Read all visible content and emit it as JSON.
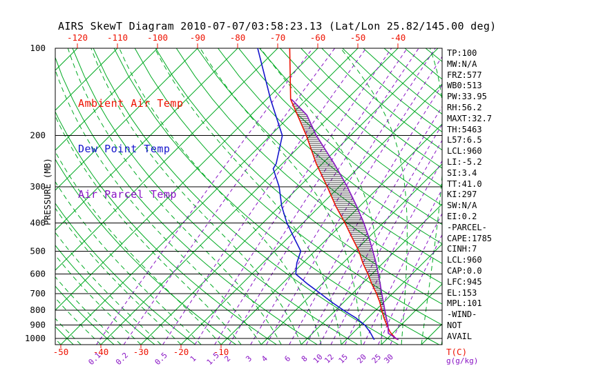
{
  "title": "AIRS SkewT Diagram 2010-07-07/03:58:23.13 (Lat/Lon 25.82/145.00 deg)",
  "legend": {
    "ambient": {
      "label": "Ambient Air Temp",
      "color": "#ee1100"
    },
    "dewpoint": {
      "label": "Dew Point Temp",
      "color": "#1414cc"
    },
    "parcel": {
      "label": "Air Parcel Temp",
      "color": "#8812c4"
    }
  },
  "axes": {
    "y_label": "PRESSURE (MB)",
    "x_label": "T(C)",
    "mix_label": "g(g/kg)",
    "pressure_ticks": [
      100,
      200,
      300,
      400,
      500,
      600,
      700,
      800,
      900,
      1000
    ],
    "top_temp_ticks": [
      -120,
      -110,
      -100,
      -90,
      -80,
      -70,
      -60,
      -50,
      -40
    ],
    "bottom_temp_ticks": [
      -50,
      -40,
      -30,
      -20,
      -10
    ],
    "mixing_ratio_ticks": [
      0.1,
      0.2,
      0.5,
      1,
      1.5,
      2,
      3,
      4,
      6,
      8,
      10,
      12,
      15,
      20,
      25,
      30
    ]
  },
  "stats": [
    "TP:100",
    "MW:N/A",
    "FRZ:577",
    "WB0:513",
    "PW:33.95",
    "RH:56.2",
    "MAXT:32.7",
    "TH:5463",
    "L57:6.5",
    "LCL:960",
    "LI:-5.2",
    "SI:3.4",
    "TT:41.0",
    "KI:297",
    "SW:N/A",
    "EI:0.2",
    "-PARCEL-",
    "CAPE:1785",
    "CINH:7",
    "LCL:960",
    "CAP:0.0",
    "LFC:945",
    "EL:153",
    "MPL:101",
    "-WIND-",
    "NOT",
    "AVAIL"
  ],
  "chart_data": {
    "type": "line",
    "subtype": "skewt-log-p",
    "title": "AIRS SkewT Diagram 2010-07-07/03:58:23.13 (Lat/Lon 25.82/145.00 deg)",
    "y_axis": {
      "label": "PRESSURE (MB)",
      "scale": "log",
      "range_mb": [
        100,
        1050
      ],
      "ticks": [
        100,
        200,
        300,
        400,
        500,
        600,
        700,
        800,
        900,
        1000
      ]
    },
    "x_axis": {
      "label": "T(C)",
      "surface_range_c": [
        -50,
        45
      ],
      "top_ticks_c": [
        -120,
        -110,
        -100,
        -90,
        -80,
        -70,
        -60,
        -50,
        -40
      ],
      "bottom_ticks_c": [
        -50,
        -40,
        -30,
        -20,
        -10
      ]
    },
    "colors": {
      "temp_red": "#ee1100",
      "dewpoint_blue": "#1414cc",
      "parcel_violet": "#8812c4",
      "grid_green": "#00aa22",
      "grid_violet": "#8812c4",
      "axis_black": "#000000",
      "hatch_black": "#000000"
    },
    "grid": {
      "isotherms_c": [
        -130,
        -120,
        -110,
        -100,
        -90,
        -80,
        -70,
        -60,
        -50,
        -40,
        -30,
        -20,
        -10,
        0,
        10,
        20,
        30,
        40
      ],
      "dry_adiabats_c": [
        -50,
        -40,
        -30,
        -20,
        -10,
        0,
        10,
        20,
        30,
        40,
        50,
        60,
        70,
        80,
        90,
        100,
        110,
        120,
        130,
        140,
        150,
        160,
        170,
        180,
        190,
        200
      ],
      "moist_adiabats_c": [
        -60,
        -55,
        -50,
        -45,
        -40,
        -35,
        -30,
        -25,
        -20,
        -15,
        -10,
        -5,
        0,
        5,
        10,
        15,
        20,
        25,
        30,
        35,
        40,
        45,
        50
      ],
      "mixing_ratio_g_kg": [
        0.1,
        0.2,
        0.5,
        1,
        1.5,
        2,
        3,
        4,
        6,
        8,
        10,
        12,
        15,
        20,
        25,
        30
      ]
    },
    "series": [
      {
        "name": "Ambient Air Temp",
        "color": "#ee1100",
        "units": [
          "mb",
          "C"
        ],
        "points": [
          [
            1010,
            33
          ],
          [
            1000,
            32
          ],
          [
            950,
            29
          ],
          [
            900,
            26.5
          ],
          [
            850,
            24
          ],
          [
            800,
            21.5
          ],
          [
            750,
            19
          ],
          [
            700,
            16
          ],
          [
            650,
            12.5
          ],
          [
            600,
            9
          ],
          [
            550,
            5
          ],
          [
            500,
            1
          ],
          [
            450,
            -4
          ],
          [
            400,
            -9.5
          ],
          [
            350,
            -16
          ],
          [
            300,
            -23
          ],
          [
            250,
            -31.5
          ],
          [
            200,
            -41
          ],
          [
            150,
            -54
          ],
          [
            100,
            -67
          ]
        ]
      },
      {
        "name": "Dew Point Temp",
        "color": "#1414cc",
        "units": [
          "mb",
          "C"
        ],
        "points": [
          [
            1010,
            27
          ],
          [
            1000,
            26.5
          ],
          [
            950,
            24
          ],
          [
            900,
            21
          ],
          [
            850,
            17
          ],
          [
            800,
            12
          ],
          [
            750,
            7
          ],
          [
            700,
            2
          ],
          [
            650,
            -3.5
          ],
          [
            600,
            -9
          ],
          [
            550,
            -11.5
          ],
          [
            500,
            -13.5
          ],
          [
            450,
            -18.5
          ],
          [
            400,
            -24
          ],
          [
            350,
            -29.5
          ],
          [
            300,
            -35
          ],
          [
            260,
            -41
          ],
          [
            250,
            -41.5
          ],
          [
            200,
            -47
          ],
          [
            150,
            -59
          ],
          [
            100,
            -75
          ]
        ]
      },
      {
        "name": "Air Parcel Temp",
        "color": "#8812c4",
        "units": [
          "mb",
          "C"
        ],
        "points": [
          [
            1010,
            33
          ],
          [
            960,
            28.9
          ],
          [
            900,
            26.8
          ],
          [
            850,
            24.6
          ],
          [
            800,
            22.3
          ],
          [
            750,
            19.9
          ],
          [
            700,
            17.3
          ],
          [
            650,
            14.6
          ],
          [
            600,
            11.6
          ],
          [
            550,
            8.3
          ],
          [
            500,
            4.5
          ],
          [
            450,
            0.2
          ],
          [
            400,
            -4.8
          ],
          [
            350,
            -10.8
          ],
          [
            300,
            -18
          ],
          [
            250,
            -27
          ],
          [
            200,
            -38.5
          ],
          [
            170,
            -46
          ],
          [
            153,
            -52.5
          ],
          [
            150,
            -53.8
          ]
        ]
      }
    ],
    "cape_hatch": {
      "from_mb": 945,
      "to_mb": 155,
      "between": [
        "Ambient Air Temp",
        "Air Parcel Temp"
      ]
    }
  }
}
